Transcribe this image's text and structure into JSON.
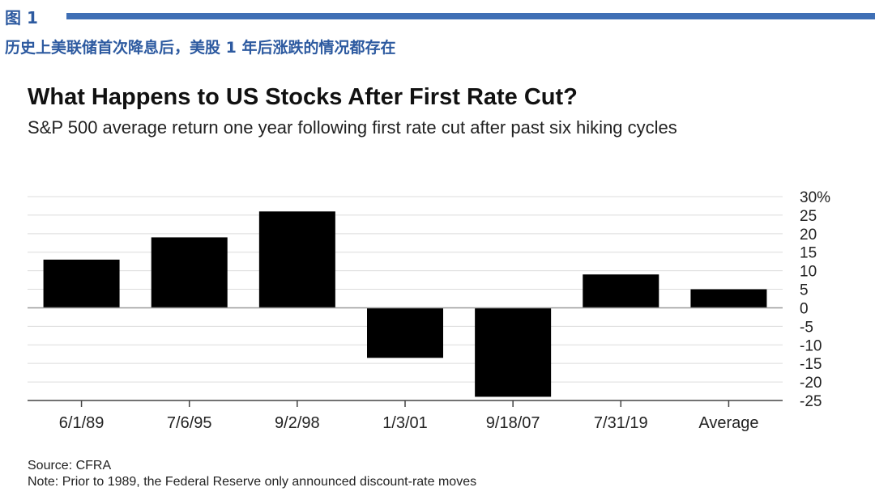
{
  "figure": {
    "label": "图 1",
    "caption": "历史上美联储首次降息后，美股 1 年后涨跌的情况都存在",
    "accent_color": "#3f6fb5"
  },
  "chart_data": {
    "type": "bar",
    "title": "What Happens to US Stocks After First Rate Cut?",
    "subtitle": "S&P 500 average return one year following first rate cut after past six hiking cycles",
    "categories": [
      "6/1/89",
      "7/6/95",
      "9/2/98",
      "1/3/01",
      "9/18/07",
      "7/31/19",
      "Average"
    ],
    "values": [
      13,
      19,
      26,
      -13.5,
      -24,
      9,
      5
    ],
    "ylim": [
      -25,
      30
    ],
    "yticks": [
      30,
      25,
      20,
      15,
      10,
      5,
      0,
      -5,
      -10,
      -15,
      -20,
      -25
    ],
    "ytick_labels": [
      "30%",
      "25",
      "20",
      "15",
      "10",
      "5",
      "0",
      "-5",
      "-10",
      "-15",
      "-20",
      "-25"
    ],
    "xlabel": "",
    "ylabel": "",
    "grid": true,
    "bar_color": "#000000",
    "y_axis_side": "right"
  },
  "footer": {
    "source": "Source: CFRA",
    "note": "Note:  Prior to 1989, the Federal Reserve only announced discount-rate moves"
  }
}
